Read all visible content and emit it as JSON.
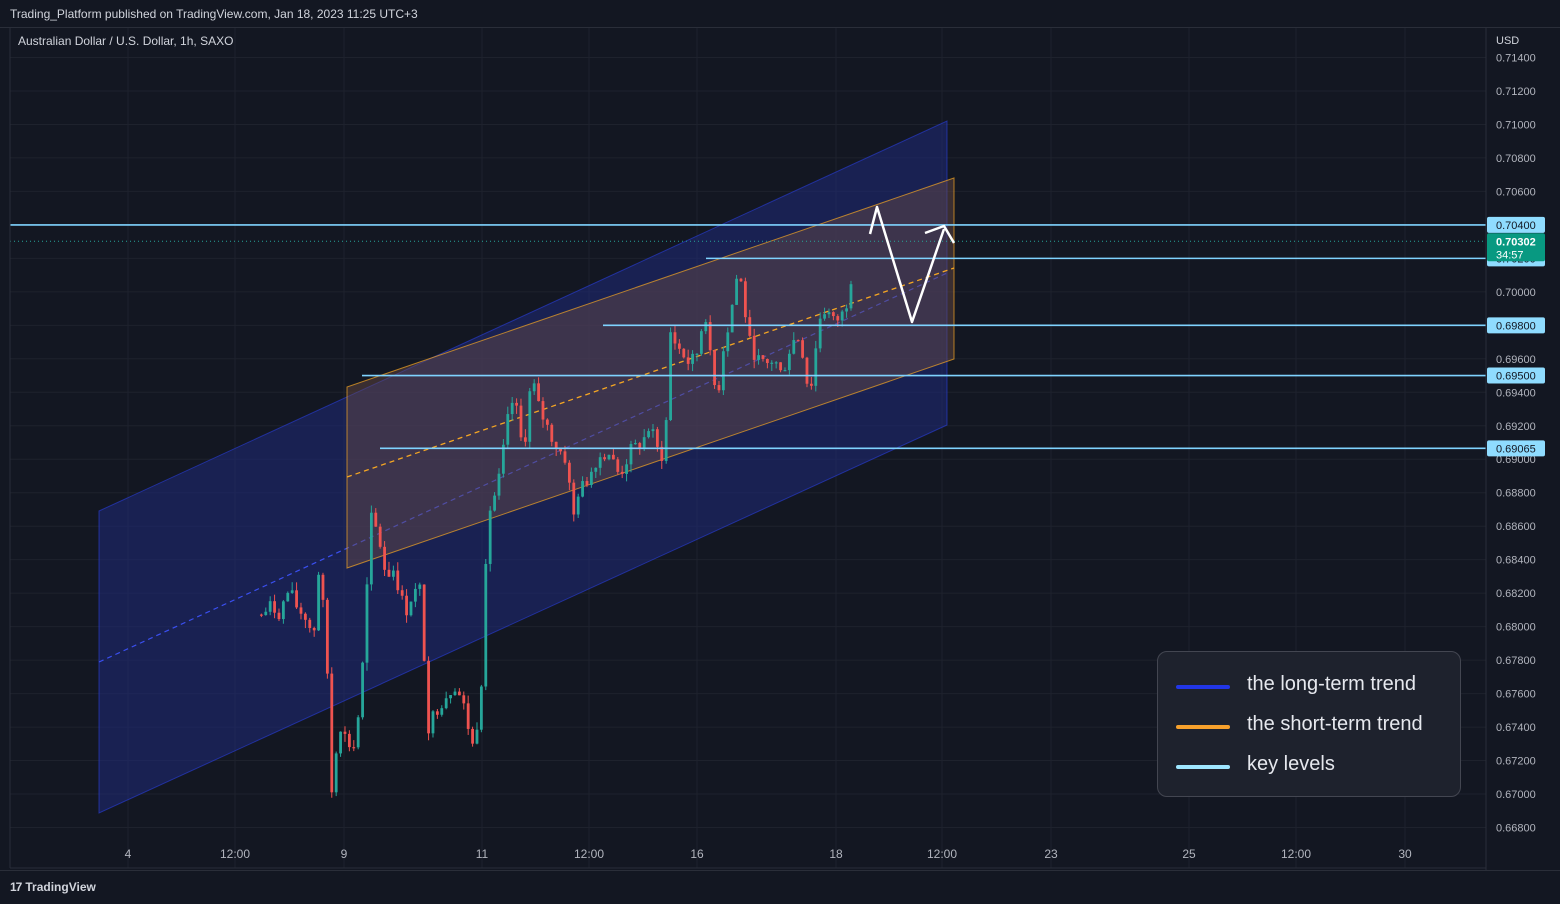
{
  "header": {
    "published": "Trading_Platform published on TradingView.com, Jan 18, 2023 11:25 UTC+3"
  },
  "footer": {
    "brand": "TradingView",
    "brand_mark": "17"
  },
  "chart_data": {
    "type": "candlestick",
    "title": "Australian Dollar / U.S. Dollar, 1h, SAXO",
    "currency_label": "USD",
    "ylim": [
      0.6672,
      0.7158
    ],
    "y_ticks": [
      "0.71400",
      "0.71200",
      "0.71000",
      "0.70800",
      "0.70600",
      "0.70400",
      "0.70200",
      "0.70000",
      "0.69800",
      "0.69600",
      "0.69400",
      "0.69200",
      "0.69000",
      "0.68800",
      "0.68600",
      "0.68400",
      "0.68200",
      "0.68000",
      "0.67800",
      "0.67600",
      "0.67400",
      "0.67200",
      "0.67000",
      "0.66800"
    ],
    "x_ticks": [
      "4",
      "12:00",
      "9",
      "11",
      "12:00",
      "16",
      "18",
      "12:00",
      "23",
      "25",
      "12:00",
      "30"
    ],
    "current_price": {
      "value": "0.70302",
      "countdown": "34:57"
    },
    "key_levels": [
      {
        "label": "0.70400",
        "value": 0.704
      },
      {
        "label": "0.70200",
        "value": 0.702
      },
      {
        "label": "0.69800",
        "value": 0.698
      },
      {
        "label": "0.69500",
        "value": 0.695
      },
      {
        "label": "0.69065",
        "value": 0.69065
      }
    ],
    "path_points": [
      [
        -1.08,
        0.6807
      ],
      [
        -0.96,
        0.6812
      ],
      [
        -0.84,
        0.6808
      ],
      [
        -0.72,
        0.6822
      ],
      [
        -0.6,
        0.681
      ],
      [
        -0.48,
        0.6805
      ],
      [
        -0.4,
        0.6792
      ],
      [
        -0.34,
        0.6835
      ],
      [
        -0.24,
        0.68
      ],
      [
        -0.15,
        0.669
      ],
      [
        -0.08,
        0.6745
      ],
      [
        0.05,
        0.673
      ],
      [
        0.15,
        0.6728
      ],
      [
        0.25,
        0.678
      ],
      [
        0.35,
        0.6865
      ],
      [
        0.45,
        0.6855
      ],
      [
        0.55,
        0.683
      ],
      [
        0.65,
        0.6835
      ],
      [
        0.8,
        0.6808
      ],
      [
        0.9,
        0.682
      ],
      [
        1.0,
        0.6822
      ],
      [
        1.1,
        0.674
      ],
      [
        1.2,
        0.675
      ],
      [
        1.35,
        0.676
      ],
      [
        1.45,
        0.6765
      ],
      [
        1.55,
        0.6755
      ],
      [
        1.7,
        0.6725
      ],
      [
        1.8,
        0.677
      ],
      [
        1.85,
        0.684
      ],
      [
        1.92,
        0.6875
      ],
      [
        2.0,
        0.688
      ],
      [
        2.1,
        0.691
      ],
      [
        2.18,
        0.6935
      ],
      [
        2.25,
        0.693
      ],
      [
        2.32,
        0.691
      ],
      [
        2.38,
        0.6915
      ],
      [
        2.45,
        0.695
      ],
      [
        2.55,
        0.693
      ],
      [
        2.65,
        0.692
      ],
      [
        2.75,
        0.691
      ],
      [
        2.9,
        0.69
      ],
      [
        3.0,
        0.6865
      ],
      [
        3.05,
        0.688
      ],
      [
        3.15,
        0.6885
      ],
      [
        3.3,
        0.69
      ],
      [
        3.45,
        0.6905
      ],
      [
        3.6,
        0.689
      ],
      [
        3.75,
        0.6905
      ],
      [
        3.9,
        0.691
      ],
      [
        4.0,
        0.692
      ],
      [
        4.1,
        0.6905
      ],
      [
        4.2,
        0.69
      ],
      [
        4.24,
        0.6978
      ],
      [
        4.35,
        0.6968
      ],
      [
        4.5,
        0.6958
      ],
      [
        4.6,
        0.696
      ],
      [
        4.72,
        0.699
      ],
      [
        4.8,
        0.6955
      ],
      [
        4.88,
        0.6935
      ],
      [
        4.95,
        0.6965
      ],
      [
        5.05,
        0.6985
      ],
      [
        5.1,
        0.7
      ],
      [
        5.16,
        0.7015
      ],
      [
        5.22,
        0.6995
      ],
      [
        5.3,
        0.697
      ],
      [
        5.4,
        0.696
      ],
      [
        5.5,
        0.6955
      ],
      [
        5.62,
        0.696
      ],
      [
        5.72,
        0.695
      ],
      [
        5.82,
        0.6965
      ],
      [
        5.92,
        0.6975
      ],
      [
        6.02,
        0.696
      ],
      [
        6.08,
        0.6935
      ],
      [
        6.15,
        0.696
      ],
      [
        6.22,
        0.6985
      ],
      [
        6.3,
        0.699
      ],
      [
        6.4,
        0.6982
      ],
      [
        6.5,
        0.6985
      ],
      [
        6.58,
        0.6995
      ],
      [
        6.65,
        0.7015
      ],
      [
        6.68,
        0.703
      ]
    ],
    "channels": [
      {
        "name": "the long-term trend",
        "color": "#2a3fe0"
      },
      {
        "name": "the short-term trend",
        "color": "#f5a623"
      }
    ],
    "legend": [
      {
        "label": "the long-term trend",
        "color": "#2236e6"
      },
      {
        "label": "the short-term trend",
        "color": "#f7a12c"
      },
      {
        "label": "key levels",
        "color": "#9ee6ff"
      }
    ],
    "legend_position": "bottom-right",
    "grid": true
  }
}
